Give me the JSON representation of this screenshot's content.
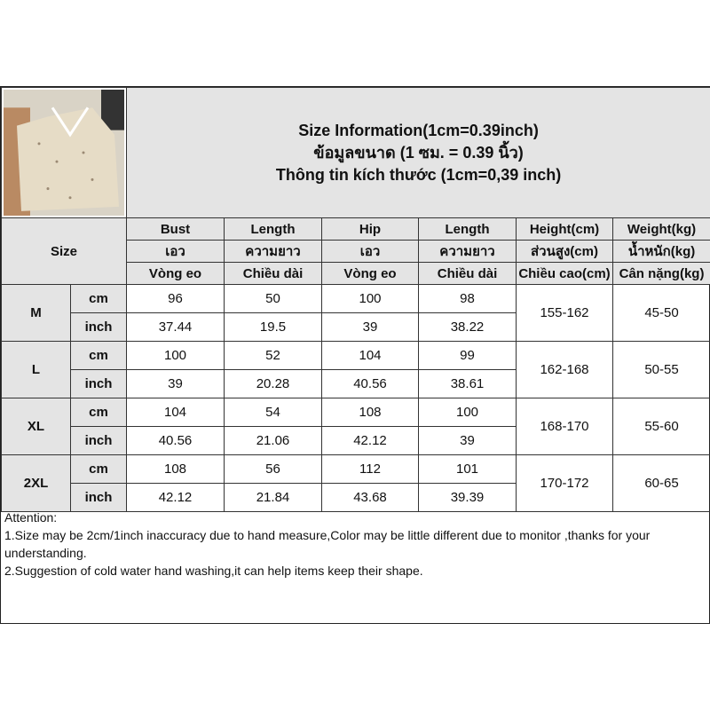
{
  "title": {
    "line1": "Size Information(1cm=0.39inch)",
    "line2": "ข้อมูลขนาด (1 ซม. = 0.39 นิ้ว)",
    "line3": "Thông tin kích thước (1cm=0,39 inch)"
  },
  "size_label": "Size",
  "columns": [
    {
      "en": "Bust",
      "th": "เอว",
      "vi": "Vòng eo"
    },
    {
      "en": "Length",
      "th": "ความยาว",
      "vi": "Chiều dài"
    },
    {
      "en": "Hip",
      "th": "เอว",
      "vi": "Vòng eo"
    },
    {
      "en": "Length",
      "th": "ความยาว",
      "vi": "Chiều dài"
    },
    {
      "en": "Height(cm)",
      "th": "ส่วนสูง(cm)",
      "vi": "Chiều cao(cm)"
    },
    {
      "en": "Weight(kg)",
      "th": "น้ำหนัก(kg)",
      "vi": "Cân nặng(kg)"
    }
  ],
  "unit_cm": "cm",
  "unit_inch": "inch",
  "sizes": [
    {
      "size": "M",
      "cm": [
        "96",
        "50",
        "100",
        "98"
      ],
      "inch": [
        "37.44",
        "19.5",
        "39",
        "38.22"
      ],
      "height": "155-162",
      "weight": "45-50"
    },
    {
      "size": "L",
      "cm": [
        "100",
        "52",
        "104",
        "99"
      ],
      "inch": [
        "39",
        "20.28",
        "40.56",
        "38.61"
      ],
      "height": "162-168",
      "weight": "50-55"
    },
    {
      "size": "XL",
      "cm": [
        "104",
        "54",
        "108",
        "100"
      ],
      "inch": [
        "40.56",
        "21.06",
        "42.12",
        "39"
      ],
      "height": "168-170",
      "weight": "55-60"
    },
    {
      "size": "2XL",
      "cm": [
        "108",
        "56",
        "112",
        "101"
      ],
      "inch": [
        "42.12",
        "21.84",
        "43.68",
        "39.39"
      ],
      "height": "170-172",
      "weight": "60-65"
    }
  ],
  "attention": {
    "heading": "Attention:",
    "note1": "1.Size may be 2cm/1inch inaccuracy due to hand measure,Color may be little different due to monitor ,thanks for your understanding.",
    "note2": "2.Suggestion of cold water hand washing,it can help items keep their shape."
  }
}
